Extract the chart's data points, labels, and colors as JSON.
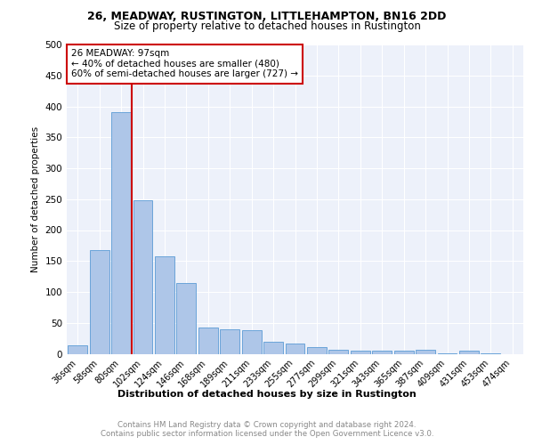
{
  "title1": "26, MEADWAY, RUSTINGTON, LITTLEHAMPTON, BN16 2DD",
  "title2": "Size of property relative to detached houses in Rustington",
  "xlabel": "Distribution of detached houses by size in Rustington",
  "ylabel": "Number of detached properties",
  "categories": [
    "36sqm",
    "58sqm",
    "80sqm",
    "102sqm",
    "124sqm",
    "146sqm",
    "168sqm",
    "189sqm",
    "211sqm",
    "233sqm",
    "255sqm",
    "277sqm",
    "299sqm",
    "321sqm",
    "343sqm",
    "365sqm",
    "387sqm",
    "409sqm",
    "431sqm",
    "453sqm",
    "474sqm"
  ],
  "values": [
    13,
    168,
    390,
    248,
    158,
    115,
    43,
    40,
    38,
    20,
    16,
    11,
    6,
    5,
    5,
    5,
    6,
    1,
    5,
    1,
    0
  ],
  "bar_color": "#aec6e8",
  "bar_edge_color": "#5b9bd5",
  "property_label": "26 MEADWAY: 97sqm",
  "annotation_line1": "← 40% of detached houses are smaller (480)",
  "annotation_line2": "60% of semi-detached houses are larger (727) →",
  "vline_color": "#cc0000",
  "vline_x": 2.5,
  "annotation_box_color": "#ffffff",
  "annotation_box_edge": "#cc0000",
  "background_color": "#edf1fa",
  "grid_color": "#ffffff",
  "footer1": "Contains HM Land Registry data © Crown copyright and database right 2024.",
  "footer2": "Contains public sector information licensed under the Open Government Licence v3.0.",
  "ylim": [
    0,
    500
  ],
  "yticks": [
    0,
    50,
    100,
    150,
    200,
    250,
    300,
    350,
    400,
    450,
    500
  ]
}
